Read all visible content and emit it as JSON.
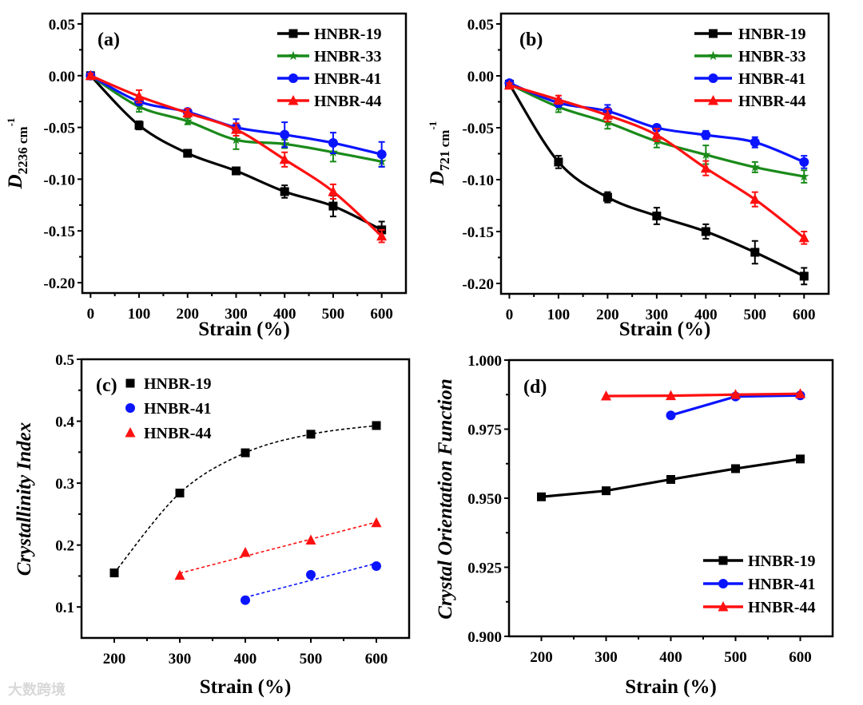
{
  "watermark": "大数跨境",
  "chart_data": [
    {
      "panel": "(a)",
      "type": "line",
      "xlabel": "Strain (%)",
      "ylabel": {
        "main": "D",
        "sub": "2236 cm",
        "sup": "-1"
      },
      "xlim": [
        -17,
        650
      ],
      "ylim": [
        -0.21,
        0.06
      ],
      "xticks": [
        0,
        100,
        200,
        300,
        400,
        500,
        600
      ],
      "xtick_labels": [
        "0",
        "100",
        "200",
        "300",
        "400",
        "500",
        "600"
      ],
      "yticks": [
        0.05,
        0.0,
        -0.05,
        -0.1,
        -0.15,
        -0.2
      ],
      "ytick_labels": [
        "0.05",
        "0.00",
        "-0.05",
        "-0.10",
        "-0.15",
        "-0.20"
      ],
      "legend": "top-right",
      "x": [
        0,
        100,
        200,
        300,
        400,
        500,
        600
      ],
      "series": [
        {
          "name": "HNBR-19",
          "color": "#000000",
          "marker": "square",
          "values": [
            0,
            -0.048,
            -0.075,
            -0.092,
            -0.112,
            -0.126,
            -0.149
          ],
          "errors": [
            0.002,
            0.004,
            0.002,
            0.003,
            0.006,
            0.01,
            0.008
          ]
        },
        {
          "name": "HNBR-33",
          "color": "#1a8a1a",
          "marker": "star",
          "values": [
            0,
            -0.03,
            -0.044,
            -0.062,
            -0.066,
            -0.074,
            -0.083
          ],
          "errors": [
            0.002,
            0.005,
            0.003,
            0.009,
            0.004,
            0.009,
            0.005
          ]
        },
        {
          "name": "HNBR-41",
          "color": "#0a14ff",
          "marker": "circle",
          "values": [
            0,
            -0.025,
            -0.035,
            -0.05,
            -0.057,
            -0.065,
            -0.076
          ],
          "errors": [
            0.002,
            0.003,
            0.003,
            0.008,
            0.012,
            0.01,
            0.012
          ]
        },
        {
          "name": "HNBR-44",
          "color": "#ff1010",
          "marker": "triangle",
          "values": [
            0,
            -0.02,
            -0.036,
            -0.052,
            -0.081,
            -0.112,
            -0.155
          ],
          "errors": [
            0.002,
            0.006,
            0.004,
            0.006,
            0.007,
            0.007,
            0.006
          ]
        }
      ]
    },
    {
      "panel": "(b)",
      "type": "line",
      "xlabel": "Strain (%)",
      "ylabel": {
        "main": "D",
        "sub": "721 cm",
        "sup": "-1"
      },
      "xlim": [
        -17,
        650
      ],
      "ylim": [
        -0.21,
        0.06
      ],
      "xticks": [
        0,
        100,
        200,
        300,
        400,
        500,
        600
      ],
      "xtick_labels": [
        "0",
        "100",
        "200",
        "300",
        "400",
        "500",
        "600"
      ],
      "yticks": [
        0.05,
        0.0,
        -0.05,
        -0.1,
        -0.15,
        -0.2
      ],
      "ytick_labels": [
        "0.05",
        "0.00",
        "-0.05",
        "-0.10",
        "-0.15",
        "-0.20"
      ],
      "legend": "top-right",
      "x": [
        0,
        100,
        200,
        300,
        400,
        500,
        600
      ],
      "series": [
        {
          "name": "HNBR-19",
          "color": "#000000",
          "marker": "square",
          "values": [
            -0.008,
            -0.083,
            -0.117,
            -0.135,
            -0.15,
            -0.17,
            -0.193
          ],
          "errors": [
            0.002,
            0.006,
            0.005,
            0.008,
            0.007,
            0.011,
            0.008
          ]
        },
        {
          "name": "HNBR-33",
          "color": "#1a8a1a",
          "marker": "star",
          "values": [
            -0.008,
            -0.03,
            -0.045,
            -0.063,
            -0.076,
            -0.088,
            -0.097
          ],
          "errors": [
            0.002,
            0.005,
            0.006,
            0.006,
            0.009,
            0.005,
            0.006
          ]
        },
        {
          "name": "HNBR-41",
          "color": "#0a14ff",
          "marker": "circle",
          "values": [
            -0.007,
            -0.026,
            -0.034,
            -0.05,
            -0.057,
            -0.064,
            -0.083
          ],
          "errors": [
            0.002,
            0.004,
            0.006,
            0.003,
            0.004,
            0.005,
            0.006
          ]
        },
        {
          "name": "HNBR-44",
          "color": "#ff1010",
          "marker": "triangle",
          "values": [
            -0.009,
            -0.023,
            -0.038,
            -0.057,
            -0.089,
            -0.119,
            -0.156
          ],
          "errors": [
            0.002,
            0.004,
            0.006,
            0.006,
            0.007,
            0.007,
            0.006
          ]
        }
      ]
    },
    {
      "panel": "(c)",
      "type": "scatter",
      "xlabel": "Strain (%)",
      "ylabel": {
        "main": "Crystallinity Index"
      },
      "xlim": [
        150,
        650
      ],
      "ylim": [
        0.05,
        0.5
      ],
      "xticks": [
        200,
        300,
        400,
        500,
        600
      ],
      "xtick_labels": [
        "200",
        "300",
        "400",
        "500",
        "600"
      ],
      "yticks": [
        0.5,
        0.4,
        0.3,
        0.2,
        0.1
      ],
      "ytick_labels": [
        "0.5",
        "0.4",
        "0.3",
        "0.2",
        "0.1"
      ],
      "legend": "top-left",
      "series": [
        {
          "name": "HNBR-19",
          "color": "#000000",
          "marker": "square",
          "fit": "curve",
          "x": [
            200,
            300,
            400,
            500,
            600
          ],
          "values": [
            0.155,
            0.284,
            0.349,
            0.379,
            0.393
          ]
        },
        {
          "name": "HNBR-41",
          "color": "#0a14ff",
          "marker": "circle",
          "fit": "linear",
          "x": [
            400,
            500,
            600
          ],
          "values": [
            0.111,
            0.152,
            0.166
          ]
        },
        {
          "name": "HNBR-44",
          "color": "#ff1010",
          "marker": "triangle",
          "fit": "linear",
          "x": [
            300,
            400,
            500,
            600
          ],
          "values": [
            0.151,
            0.188,
            0.208,
            0.236
          ]
        }
      ]
    },
    {
      "panel": "(d)",
      "type": "line",
      "xlabel": "Strain (%)",
      "ylabel": {
        "main": "Crystal Orientation Function"
      },
      "xlim": [
        150,
        650
      ],
      "ylim": [
        0.9,
        1.0
      ],
      "xticks": [
        200,
        300,
        400,
        500,
        600
      ],
      "xtick_labels": [
        "200",
        "300",
        "400",
        "500",
        "600"
      ],
      "yticks": [
        1.0,
        0.975,
        0.95,
        0.925,
        0.9
      ],
      "ytick_labels": [
        "1.000",
        "0.975",
        "0.950",
        "0.925",
        "0.900"
      ],
      "legend": "bottom-right",
      "series": [
        {
          "name": "HNBR-19",
          "color": "#000000",
          "marker": "square",
          "x": [
            200,
            300,
            400,
            500,
            600
          ],
          "values": [
            0.9505,
            0.9527,
            0.9568,
            0.9607,
            0.9642
          ]
        },
        {
          "name": "HNBR-41",
          "color": "#0a14ff",
          "marker": "circle",
          "x": [
            400,
            500,
            600
          ],
          "values": [
            0.98,
            0.9868,
            0.9872
          ]
        },
        {
          "name": "HNBR-44",
          "color": "#ff1010",
          "marker": "triangle",
          "x": [
            300,
            400,
            500,
            600
          ],
          "values": [
            0.987,
            0.9871,
            0.9875,
            0.9878
          ]
        }
      ]
    }
  ]
}
